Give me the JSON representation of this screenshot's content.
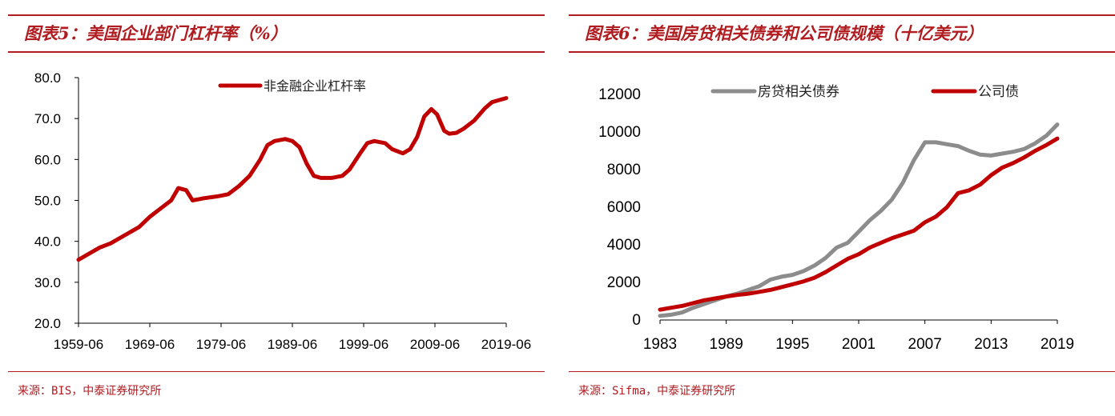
{
  "colors": {
    "accent": "#b01c20",
    "series_red": "#c00000",
    "series_grey": "#8c8c8c"
  },
  "left": {
    "title": "图表5：美国企业部门杠杆率（%）",
    "source": "来源：BIS，中泰证券研究所",
    "chart_data": {
      "type": "line",
      "title": "美国企业部门杠杆率（%）",
      "xlabel": "",
      "ylabel": "",
      "ylim": [
        20,
        80
      ],
      "xlim": [
        1959.5,
        2019.5
      ],
      "yticks": [
        20,
        30,
        40,
        50,
        60,
        70,
        80
      ],
      "ytick_labels": [
        "20.0",
        "30.0",
        "40.0",
        "50.0",
        "60.0",
        "70.0",
        "80.0"
      ],
      "xticks": [
        1959.5,
        1969.5,
        1979.5,
        1989.5,
        1999.5,
        2009.5,
        2019.5
      ],
      "xtick_labels": [
        "1959-06",
        "1969-06",
        "1979-06",
        "1989-06",
        "1999-06",
        "2009-06",
        "2019-06"
      ],
      "legend": "top-center",
      "series": [
        {
          "name": "非金融企业杠杆率",
          "color": "#c00000",
          "x": [
            1959.5,
            1961,
            1962.5,
            1964,
            1966,
            1968,
            1969.5,
            1971,
            1972.5,
            1973.5,
            1974.6,
            1975.5,
            1977,
            1979,
            1980.5,
            1982,
            1983.5,
            1985,
            1986,
            1987,
            1988.5,
            1989.5,
            1990.5,
            1991.5,
            1992.5,
            1993.5,
            1995,
            1996.5,
            1997.5,
            1999,
            2000,
            2001,
            2002.5,
            2003.5,
            2005,
            2006,
            2007,
            2008,
            2009,
            2009.8,
            2010.8,
            2011.5,
            2012.5,
            2013.5,
            2015,
            2016.5,
            2017.5,
            2018.5,
            2019.5
          ],
          "values": [
            35.5,
            37.0,
            38.5,
            39.5,
            41.5,
            43.5,
            46.0,
            48.0,
            50.0,
            53.0,
            52.5,
            50.0,
            50.5,
            51.0,
            51.5,
            53.5,
            56.0,
            60.0,
            63.5,
            64.5,
            65.0,
            64.5,
            63.0,
            59.0,
            56.0,
            55.5,
            55.5,
            56.0,
            57.5,
            61.5,
            64.0,
            64.5,
            64.0,
            62.5,
            61.5,
            62.5,
            65.5,
            70.5,
            72.3,
            71.0,
            67.0,
            66.3,
            66.5,
            67.5,
            69.5,
            72.5,
            74.0,
            74.5,
            75.0
          ]
        }
      ]
    }
  },
  "right": {
    "title": "图表6：美国房贷相关债券和公司债规模（十亿美元）",
    "source": "来源：Sifma，中泰证券研究所",
    "chart_data": {
      "type": "line",
      "title": "美国房贷相关债券和公司债规模（十亿美元）",
      "xlabel": "",
      "ylabel": "",
      "ylim": [
        0,
        12000
      ],
      "xlim": [
        1983,
        2019
      ],
      "yticks": [
        0,
        2000,
        4000,
        6000,
        8000,
        10000,
        12000
      ],
      "ytick_labels": [
        "0",
        "2000",
        "4000",
        "6000",
        "8000",
        "10000",
        "12000"
      ],
      "xticks": [
        1983,
        1989,
        1995,
        2001,
        2007,
        2013,
        2019
      ],
      "xtick_labels": [
        "1983",
        "1989",
        "1995",
        "2001",
        "2007",
        "2013",
        "2019"
      ],
      "legend": "top",
      "series": [
        {
          "name": "房贷相关债券",
          "color": "#8c8c8c",
          "x": [
            1983,
            1984,
            1985,
            1986,
            1987,
            1988,
            1989,
            1990,
            1991,
            1992,
            1993,
            1994,
            1995,
            1996,
            1997,
            1998,
            1999,
            2000,
            2001,
            2002,
            2003,
            2004,
            2005,
            2006,
            2007,
            2008,
            2009,
            2010,
            2011,
            2012,
            2013,
            2014,
            2015,
            2016,
            2017,
            2018,
            2019
          ],
          "values": [
            220,
            280,
            400,
            650,
            850,
            1050,
            1250,
            1400,
            1600,
            1800,
            2150,
            2300,
            2400,
            2600,
            2900,
            3300,
            3850,
            4100,
            4700,
            5300,
            5800,
            6400,
            7300,
            8500,
            9450,
            9450,
            9350,
            9250,
            9000,
            8800,
            8750,
            8850,
            8950,
            9100,
            9400,
            9800,
            10400
          ]
        },
        {
          "name": "公司债",
          "color": "#c00000",
          "x": [
            1983,
            1984,
            1985,
            1986,
            1987,
            1988,
            1989,
            1990,
            1991,
            1992,
            1993,
            1994,
            1995,
            1996,
            1997,
            1998,
            1999,
            2000,
            2001,
            2002,
            2003,
            2004,
            2005,
            2006,
            2007,
            2008,
            2009,
            2010,
            2011,
            2012,
            2013,
            2014,
            2015,
            2016,
            2017,
            2018,
            2019
          ],
          "values": [
            550,
            650,
            750,
            900,
            1050,
            1150,
            1250,
            1330,
            1400,
            1500,
            1600,
            1750,
            1900,
            2050,
            2250,
            2550,
            2900,
            3250,
            3500,
            3850,
            4100,
            4350,
            4550,
            4750,
            5200,
            5500,
            6000,
            6750,
            6900,
            7200,
            7700,
            8100,
            8350,
            8650,
            9000,
            9300,
            9650
          ]
        }
      ]
    }
  }
}
